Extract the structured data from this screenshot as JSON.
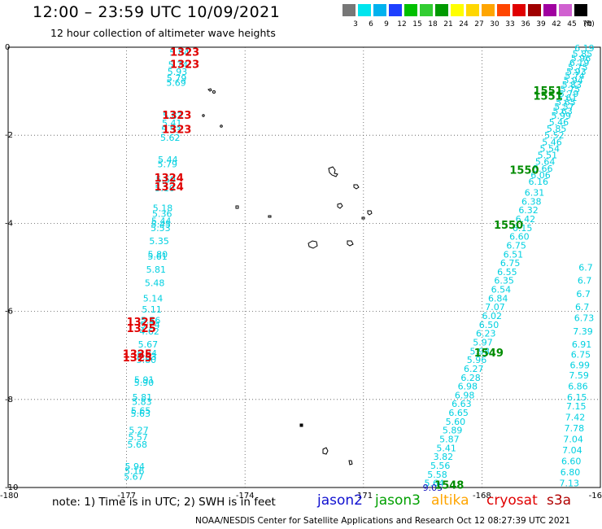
{
  "header": {
    "title": "12:00 – 23:59 UTC 10/09/2021",
    "subtitle": "12 hour collection of altimeter wave heights"
  },
  "legend": {
    "unit": "(ft)",
    "bins": [
      {
        "label": "3",
        "color": "#777777"
      },
      {
        "label": "6",
        "color": "#00e5ee"
      },
      {
        "label": "9",
        "color": "#00b2ee"
      },
      {
        "label": "12",
        "color": "#1e40ff"
      },
      {
        "label": "15",
        "color": "#00c000"
      },
      {
        "label": "18",
        "color": "#32cd32"
      },
      {
        "label": "21",
        "color": "#009a00"
      },
      {
        "label": "24",
        "color": "#ffff00"
      },
      {
        "label": "27",
        "color": "#ffd700"
      },
      {
        "label": "30",
        "color": "#ffa500"
      },
      {
        "label": "33",
        "color": "#ff4500"
      },
      {
        "label": "36",
        "color": "#e00000"
      },
      {
        "label": "39",
        "color": "#a00000"
      },
      {
        "label": "42",
        "color": "#a000a0"
      },
      {
        "label": "45",
        "color": "#d060d0"
      },
      {
        "label": "70",
        "color": "#000000"
      }
    ]
  },
  "map": {
    "x_ticks": [
      "-180",
      "-177",
      "-174",
      "-171",
      "-168",
      "-16"
    ],
    "y_ticks": [
      "0",
      "-2",
      "-4",
      "-6",
      "-8",
      "-10"
    ],
    "colors": {
      "cyan": "#00d0e0",
      "red": "#e00000",
      "green": "#008c00",
      "blue": "#1010c0"
    },
    "west_track": [
      {
        "v": "5.84",
        "lat": -0.12
      },
      {
        "v": "5.74",
        "lat": -0.4
      },
      {
        "v": "5.93",
        "lat": -0.55
      },
      {
        "v": "5.79",
        "lat": -0.7
      },
      {
        "v": "5.69",
        "lat": -0.8
      },
      {
        "v": "5.83",
        "lat": -1.55
      },
      {
        "v": "5.41",
        "lat": -1.72
      },
      {
        "v": "5.53",
        "lat": -1.88
      },
      {
        "v": "5.62",
        "lat": -2.05
      },
      {
        "v": "5.44",
        "lat": -2.55
      },
      {
        "v": "5.79",
        "lat": -2.65
      },
      {
        "v": "5.59",
        "lat": -3.0
      },
      {
        "v": "5.10",
        "lat": -3.2
      },
      {
        "v": "5.18",
        "lat": -3.65
      },
      {
        "v": "5.36",
        "lat": -3.78
      },
      {
        "v": "5.44",
        "lat": -3.95
      },
      {
        "v": "5.45",
        "lat": -4.02
      },
      {
        "v": "5.53",
        "lat": -4.1
      },
      {
        "v": "5.35",
        "lat": -4.4
      },
      {
        "v": "5.80",
        "lat": -4.7
      },
      {
        "v": "5.61",
        "lat": -4.75
      },
      {
        "v": "5.81",
        "lat": -5.05
      },
      {
        "v": "5.48",
        "lat": -5.35
      },
      {
        "v": "5.14",
        "lat": -5.7
      },
      {
        "v": "5.11",
        "lat": -5.95
      },
      {
        "v": "5.56",
        "lat": -6.2
      },
      {
        "v": "5.24",
        "lat": -6.3
      },
      {
        "v": "4.62",
        "lat": -6.45
      },
      {
        "v": "5.67",
        "lat": -6.75
      },
      {
        "v": "5.84",
        "lat": -6.95
      },
      {
        "v": "5.83",
        "lat": -7.02
      },
      {
        "v": "5.80",
        "lat": -7.1
      },
      {
        "v": "5.91",
        "lat": -7.55
      },
      {
        "v": "5.90",
        "lat": -7.62
      },
      {
        "v": "5.81",
        "lat": -7.95
      },
      {
        "v": "5.83",
        "lat": -8.05
      },
      {
        "v": "5.65",
        "lat": -8.25
      },
      {
        "v": "5.63",
        "lat": -8.32
      },
      {
        "v": "5.27",
        "lat": -8.7
      },
      {
        "v": "5.57",
        "lat": -8.85
      },
      {
        "v": "5.68",
        "lat": -9.02
      },
      {
        "v": "5.94",
        "lat": -9.52
      },
      {
        "v": "5.16",
        "lat": -9.62
      },
      {
        "v": "5.67",
        "lat": -9.75
      }
    ],
    "east_track": [
      {
        "v": "6.19",
        "lat": -0.02
      },
      {
        "v": "5.85",
        "lat": -0.15
      },
      {
        "v": "5.96",
        "lat": -0.25
      },
      {
        "v": "6.19",
        "lat": -0.35
      },
      {
        "v": "5.75",
        "lat": -0.45
      },
      {
        "v": "5.93",
        "lat": -0.55
      },
      {
        "v": "5.74",
        "lat": -0.65
      },
      {
        "v": "5.94",
        "lat": -0.75
      },
      {
        "v": "5.83",
        "lat": -0.85
      },
      {
        "v": "5.75",
        "lat": -0.95
      },
      {
        "v": "5.79",
        "lat": -1.05
      },
      {
        "v": "5.61",
        "lat": -1.15
      },
      {
        "v": "5.65",
        "lat": -1.25
      },
      {
        "v": "5.57",
        "lat": -1.35
      },
      {
        "v": "5.63",
        "lat": -1.45
      },
      {
        "v": "5.99",
        "lat": -1.55
      },
      {
        "v": "5.46",
        "lat": -1.7
      },
      {
        "v": "5.85",
        "lat": -1.85
      },
      {
        "v": "5.52",
        "lat": -2.0
      },
      {
        "v": "5.46",
        "lat": -2.15
      },
      {
        "v": "5.54",
        "lat": -2.3
      },
      {
        "v": "5.51",
        "lat": -2.45
      },
      {
        "v": "5.64",
        "lat": -2.6
      },
      {
        "v": "5.66",
        "lat": -2.75
      },
      {
        "v": "6.06",
        "lat": -2.9
      },
      {
        "v": "6.16",
        "lat": -3.05
      },
      {
        "v": "6.31",
        "lat": -3.3
      },
      {
        "v": "6.38",
        "lat": -3.5
      },
      {
        "v": "6.32",
        "lat": -3.7
      },
      {
        "v": "6.42",
        "lat": -3.9
      },
      {
        "v": "6.15",
        "lat": -4.1
      },
      {
        "v": "6.60",
        "lat": -4.3
      },
      {
        "v": "6.75",
        "lat": -4.5
      },
      {
        "v": "6.51",
        "lat": -4.7
      },
      {
        "v": "6.75",
        "lat": -4.9
      },
      {
        "v": "6.55",
        "lat": -5.1
      },
      {
        "v": "6.35",
        "lat": -5.3
      },
      {
        "v": "6.54",
        "lat": -5.5
      },
      {
        "v": "6.84",
        "lat": -5.7
      },
      {
        "v": "7.07",
        "lat": -5.9
      },
      {
        "v": "6.02",
        "lat": -6.1
      },
      {
        "v": "6.50",
        "lat": -6.3
      },
      {
        "v": "6.23",
        "lat": -6.5
      },
      {
        "v": "5.97",
        "lat": -6.7
      },
      {
        "v": "5.98",
        "lat": -6.9
      },
      {
        "v": "5.96",
        "lat": -7.1
      },
      {
        "v": "6.27",
        "lat": -7.3
      },
      {
        "v": "6.28",
        "lat": -7.5
      },
      {
        "v": "6.98",
        "lat": -7.7
      },
      {
        "v": "6.98",
        "lat": -7.9
      },
      {
        "v": "6.63",
        "lat": -8.1
      },
      {
        "v": "6.65",
        "lat": -8.3
      },
      {
        "v": "5.60",
        "lat": -8.5
      },
      {
        "v": "5.89",
        "lat": -8.7
      },
      {
        "v": "5.87",
        "lat": -8.9
      },
      {
        "v": "5.41",
        "lat": -9.1
      },
      {
        "v": "3.82",
        "lat": -9.3
      },
      {
        "v": "5.56",
        "lat": -9.5
      },
      {
        "v": "5.58",
        "lat": -9.7
      },
      {
        "v": "5.64",
        "lat": -9.9
      },
      {
        "v": "9.05",
        "lat": -10.0,
        "color": "blue"
      }
    ],
    "edge_track": [
      {
        "v": "6.7",
        "lat": -5.0
      },
      {
        "v": "6.7",
        "lat": -5.3
      },
      {
        "v": "6.7",
        "lat": -5.6
      },
      {
        "v": "6.7",
        "lat": -5.9
      },
      {
        "v": "6.73",
        "lat": -6.15
      },
      {
        "v": "7.39",
        "lat": -6.45
      },
      {
        "v": "6.91",
        "lat": -6.75
      },
      {
        "v": "6.75",
        "lat": -6.98
      },
      {
        "v": "6.99",
        "lat": -7.22
      },
      {
        "v": "7.59",
        "lat": -7.45
      },
      {
        "v": "6.86",
        "lat": -7.7
      },
      {
        "v": "6.15",
        "lat": -7.95
      },
      {
        "v": "7.15",
        "lat": -8.15
      },
      {
        "v": "7.42",
        "lat": -8.4
      },
      {
        "v": "7.78",
        "lat": -8.65
      },
      {
        "v": "7.04",
        "lat": -8.9
      },
      {
        "v": "7.04",
        "lat": -9.15
      },
      {
        "v": "6.60",
        "lat": -9.4
      },
      {
        "v": "6.80",
        "lat": -9.65
      },
      {
        "v": "7.13",
        "lat": -9.9
      }
    ],
    "pass_labels": [
      {
        "v": "1323",
        "lon": -175.9,
        "lat": -0.12,
        "color": "red"
      },
      {
        "v": "1323",
        "lon": -175.9,
        "lat": -0.4,
        "color": "red"
      },
      {
        "v": "1323",
        "lon": -176.1,
        "lat": -1.55,
        "color": "red"
      },
      {
        "v": "1323",
        "lon": -176.1,
        "lat": -1.88,
        "color": "red"
      },
      {
        "v": "1324",
        "lon": -176.3,
        "lat": -2.98,
        "color": "red"
      },
      {
        "v": "1324",
        "lon": -176.3,
        "lat": -3.18,
        "color": "red"
      },
      {
        "v": "1325",
        "lon": -177.0,
        "lat": -6.25,
        "color": "red"
      },
      {
        "v": "1325",
        "lon": -177.0,
        "lat": -6.4,
        "color": "red"
      },
      {
        "v": "1325",
        "lon": -177.1,
        "lat": -6.98,
        "color": "red"
      },
      {
        "v": "1325",
        "lon": -177.1,
        "lat": -7.06,
        "color": "red"
      },
      {
        "v": "1551",
        "lon": -166.7,
        "lat": -1.0,
        "color": "green"
      },
      {
        "v": "1551",
        "lon": -166.7,
        "lat": -1.12,
        "color": "green"
      },
      {
        "v": "1550",
        "lon": -167.3,
        "lat": -2.8,
        "color": "green"
      },
      {
        "v": "1550",
        "lon": -167.7,
        "lat": -4.05,
        "color": "green"
      },
      {
        "v": "1549",
        "lon": -168.2,
        "lat": -6.95,
        "color": "green"
      },
      {
        "v": "1548",
        "lon": -169.2,
        "lat": -9.95,
        "color": "green"
      }
    ]
  },
  "footer": {
    "note": "note:  1) Time is in UTC;  2) SWH is in feet",
    "satellites": [
      {
        "name": "jason2",
        "color": "#1010d0"
      },
      {
        "name": "jason3",
        "color": "#00a000"
      },
      {
        "name": "altika",
        "color": "#ffa500"
      },
      {
        "name": "cryosat",
        "color": "#e00000"
      },
      {
        "name": "s3a",
        "color": "#b00000"
      }
    ],
    "credit": "NOAA/NESDIS Center for Satellite Applications and Research     Oct 12 08:27:39 UTC 2021"
  }
}
